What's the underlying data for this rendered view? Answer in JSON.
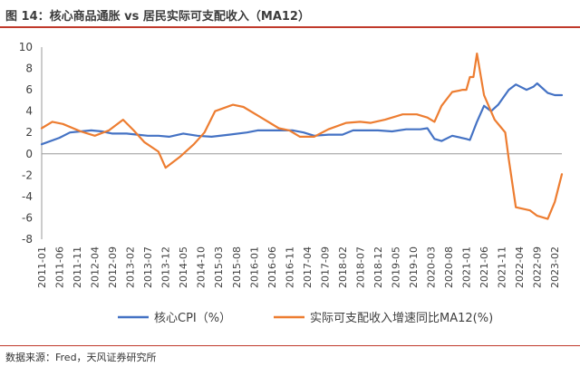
{
  "header": {
    "title": "图 14：核心商品通胀 vs 居民实际可支配收入（MA12）"
  },
  "footer": {
    "source": "数据来源：Fred，天风证券研究所"
  },
  "colors": {
    "cpi": "#4472c4",
    "income": "#ed7d31",
    "title_rule": "#c0392b",
    "axis": "#999999",
    "text": "#404040"
  },
  "chart_data": {
    "type": "line",
    "title": "图 14：核心商品通胀 vs 居民实际可支配收入（MA12）",
    "xlabel": "",
    "ylabel": "",
    "ylim": [
      -8,
      10
    ],
    "yticks": [
      -8,
      -6,
      -4,
      -2,
      0,
      2,
      4,
      6,
      8,
      10
    ],
    "grid": false,
    "legend_position": "bottom",
    "x_start": "2011-01",
    "x_tick_labels": [
      "2011-01",
      "2011-06",
      "2011-11",
      "2012-04",
      "2012-09",
      "2013-02",
      "2013-07",
      "2013-12",
      "2014-05",
      "2014-10",
      "2015-03",
      "2015-08",
      "2016-01",
      "2016-06",
      "2016-11",
      "2017-04",
      "2017-09",
      "2018-02",
      "2018-07",
      "2018-12",
      "2019-05",
      "2019-10",
      "2020-03",
      "2020-08",
      "2021-01",
      "2021-06",
      "2021-11",
      "2022-04",
      "2022-09",
      "2023-02"
    ],
    "series": [
      {
        "name": "核心CPI（%）",
        "color": "#4472c4",
        "points": [
          [
            "2011-01",
            0.9
          ],
          [
            "2011-06",
            1.5
          ],
          [
            "2011-09",
            2.0
          ],
          [
            "2011-12",
            2.1
          ],
          [
            "2012-03",
            2.2
          ],
          [
            "2012-06",
            2.1
          ],
          [
            "2012-09",
            1.9
          ],
          [
            "2013-01",
            1.9
          ],
          [
            "2013-04",
            1.8
          ],
          [
            "2013-07",
            1.7
          ],
          [
            "2013-10",
            1.7
          ],
          [
            "2014-01",
            1.6
          ],
          [
            "2014-05",
            1.9
          ],
          [
            "2014-09",
            1.7
          ],
          [
            "2015-01",
            1.6
          ],
          [
            "2015-06",
            1.8
          ],
          [
            "2015-11",
            2.0
          ],
          [
            "2016-02",
            2.2
          ],
          [
            "2016-07",
            2.2
          ],
          [
            "2016-12",
            2.2
          ],
          [
            "2017-03",
            2.0
          ],
          [
            "2017-06",
            1.7
          ],
          [
            "2017-10",
            1.8
          ],
          [
            "2018-02",
            1.8
          ],
          [
            "2018-05",
            2.2
          ],
          [
            "2018-09",
            2.2
          ],
          [
            "2018-12",
            2.2
          ],
          [
            "2019-04",
            2.1
          ],
          [
            "2019-08",
            2.3
          ],
          [
            "2019-12",
            2.3
          ],
          [
            "2020-02",
            2.4
          ],
          [
            "2020-04",
            1.4
          ],
          [
            "2020-06",
            1.2
          ],
          [
            "2020-09",
            1.7
          ],
          [
            "2021-01",
            1.4
          ],
          [
            "2021-02",
            1.3
          ],
          [
            "2021-04",
            3.0
          ],
          [
            "2021-06",
            4.5
          ],
          [
            "2021-08",
            4.0
          ],
          [
            "2021-10",
            4.6
          ],
          [
            "2022-01",
            6.0
          ],
          [
            "2022-03",
            6.5
          ],
          [
            "2022-06",
            6.0
          ],
          [
            "2022-08",
            6.3
          ],
          [
            "2022-09",
            6.6
          ],
          [
            "2022-12",
            5.7
          ],
          [
            "2023-02",
            5.5
          ],
          [
            "2023-04",
            5.5
          ]
        ]
      },
      {
        "name": "实际可支配收入增速同比MA12(%)",
        "color": "#ed7d31",
        "points": [
          [
            "2011-01",
            2.4
          ],
          [
            "2011-04",
            3.0
          ],
          [
            "2011-07",
            2.8
          ],
          [
            "2011-12",
            2.1
          ],
          [
            "2012-04",
            1.7
          ],
          [
            "2012-08",
            2.2
          ],
          [
            "2012-12",
            3.2
          ],
          [
            "2013-03",
            2.2
          ],
          [
            "2013-06",
            1.1
          ],
          [
            "2013-10",
            0.2
          ],
          [
            "2013-12",
            -1.3
          ],
          [
            "2014-04",
            -0.3
          ],
          [
            "2014-08",
            0.9
          ],
          [
            "2014-11",
            2.0
          ],
          [
            "2015-02",
            4.0
          ],
          [
            "2015-07",
            4.6
          ],
          [
            "2015-10",
            4.4
          ],
          [
            "2016-03",
            3.4
          ],
          [
            "2016-08",
            2.4
          ],
          [
            "2016-11",
            2.2
          ],
          [
            "2017-02",
            1.6
          ],
          [
            "2017-06",
            1.6
          ],
          [
            "2017-10",
            2.3
          ],
          [
            "2018-03",
            2.9
          ],
          [
            "2018-07",
            3.0
          ],
          [
            "2018-10",
            2.9
          ],
          [
            "2019-02",
            3.2
          ],
          [
            "2019-07",
            3.7
          ],
          [
            "2019-11",
            3.7
          ],
          [
            "2020-02",
            3.4
          ],
          [
            "2020-04",
            3.0
          ],
          [
            "2020-06",
            4.5
          ],
          [
            "2020-09",
            5.8
          ],
          [
            "2020-12",
            6.0
          ],
          [
            "2021-01",
            6.0
          ],
          [
            "2021-02",
            7.2
          ],
          [
            "2021-03",
            7.2
          ],
          [
            "2021-04",
            9.4
          ],
          [
            "2021-06",
            5.5
          ],
          [
            "2021-09",
            3.2
          ],
          [
            "2021-11",
            2.4
          ],
          [
            "2021-12",
            2.0
          ],
          [
            "2022-01",
            -0.5
          ],
          [
            "2022-03",
            -5.0
          ],
          [
            "2022-07",
            -5.3
          ],
          [
            "2022-09",
            -5.8
          ],
          [
            "2022-12",
            -6.1
          ],
          [
            "2023-02",
            -4.5
          ],
          [
            "2023-04",
            -1.9
          ]
        ]
      }
    ]
  }
}
